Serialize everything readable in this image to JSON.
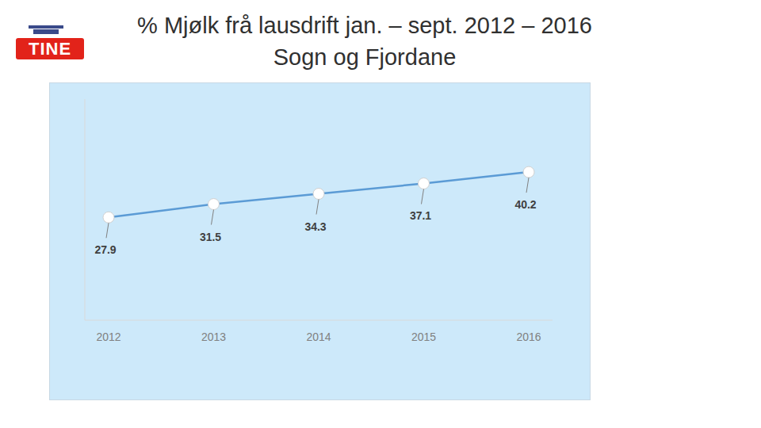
{
  "logo": "TINE",
  "chart_data": {
    "type": "line",
    "title": "% Mjølk frå lausdrift jan. – sept. 2012 – 2016 Sogn og Fjordane",
    "categories": [
      "2012",
      "2013",
      "2014",
      "2015",
      "2016"
    ],
    "values": [
      27.9,
      31.5,
      34.3,
      37.1,
      40.2
    ],
    "color": "#5b9bd5",
    "ylim": [
      0,
      60
    ],
    "tick_labels": "x",
    "grid": false,
    "data_labels": true,
    "marker": "circle"
  }
}
